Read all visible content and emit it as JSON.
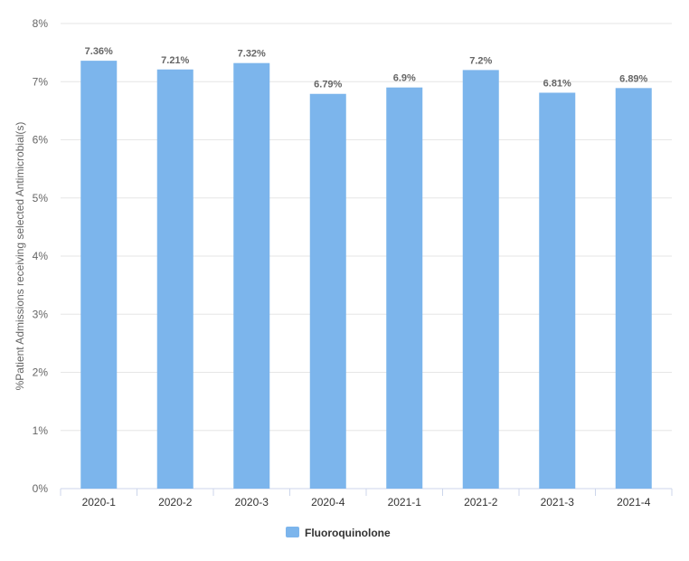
{
  "chart_data": {
    "type": "bar",
    "categories": [
      "2020-1",
      "2020-2",
      "2020-3",
      "2020-4",
      "2021-1",
      "2021-2",
      "2021-3",
      "2021-4"
    ],
    "series": [
      {
        "name": "Fluoroquinolone",
        "values": [
          7.36,
          7.21,
          7.32,
          6.79,
          6.9,
          7.2,
          6.81,
          6.89
        ],
        "labels": [
          "7.36%",
          "7.21%",
          "7.32%",
          "6.79%",
          "6.9%",
          "7.2%",
          "6.81%",
          "6.89%"
        ],
        "color": "#7cb5ec"
      }
    ],
    "ylabel": "%Patient Admissions receiving selected Antimicrobial(s)",
    "xlabel": "",
    "ylim": [
      0,
      8
    ],
    "yticks": [
      "0%",
      "1%",
      "2%",
      "3%",
      "4%",
      "5%",
      "6%",
      "7%",
      "8%"
    ],
    "grid": true,
    "legend_position": "bottom-center"
  },
  "colors": {
    "grid": "#e6e6e6",
    "axis": "#ccd6eb"
  }
}
